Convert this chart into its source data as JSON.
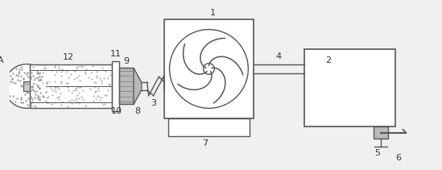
{
  "bg_color": "#f0f0f0",
  "line_color": "#555555",
  "label_color": "#333333",
  "fig_width": 5.49,
  "fig_height": 2.11,
  "dpi": 100
}
